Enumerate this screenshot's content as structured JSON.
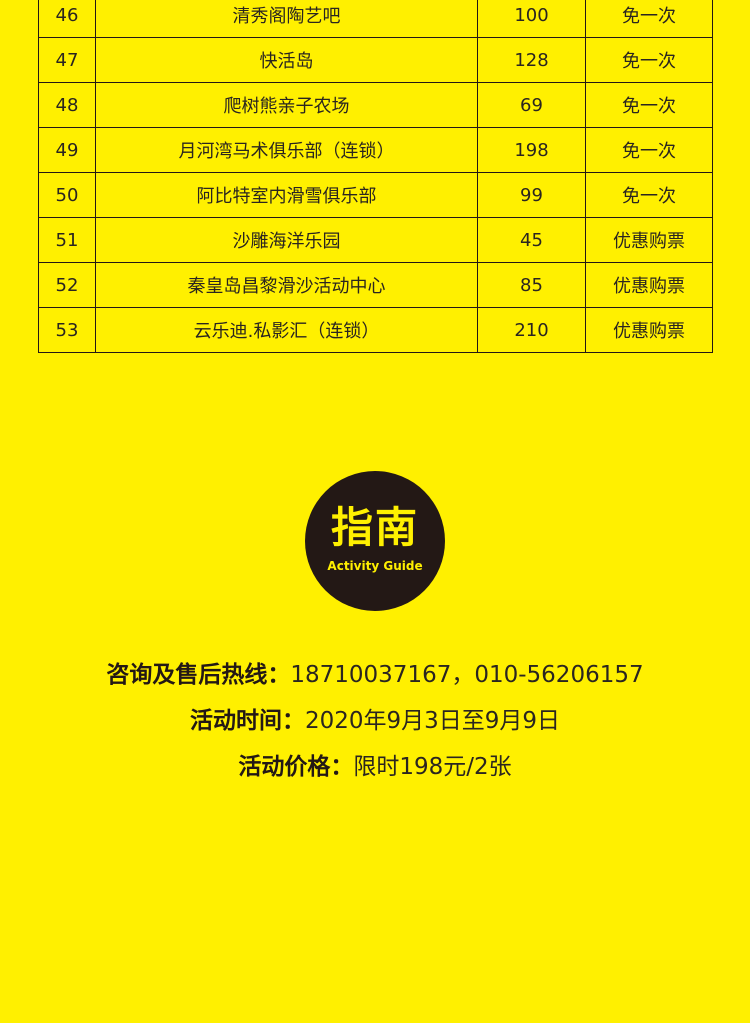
{
  "table": {
    "rows": [
      {
        "no": "46",
        "name": "清秀阁陶艺吧",
        "price": "100",
        "deal": "免一次"
      },
      {
        "no": "47",
        "name": "快活岛",
        "price": "128",
        "deal": "免一次"
      },
      {
        "no": "48",
        "name": "爬树熊亲子农场",
        "price": "69",
        "deal": "免一次"
      },
      {
        "no": "49",
        "name": "月河湾马术俱乐部（连锁）",
        "price": "198",
        "deal": "免一次"
      },
      {
        "no": "50",
        "name": "阿比特室内滑雪俱乐部",
        "price": "99",
        "deal": "免一次"
      },
      {
        "no": "51",
        "name": "沙雕海洋乐园",
        "price": "45",
        "deal": "优惠购票"
      },
      {
        "no": "52",
        "name": "秦皇岛昌黎滑沙活动中心",
        "price": "85",
        "deal": "优惠购票"
      },
      {
        "no": "53",
        "name": "云乐迪.私影汇（连锁）",
        "price": "210",
        "deal": "优惠购票"
      }
    ]
  },
  "guide": {
    "title": "指南",
    "subtitle": "Activity Guide"
  },
  "info": {
    "hotline_label": "咨询及售后热线：",
    "hotline_value": "18710037167，010-56206157",
    "time_label": "活动时间：",
    "time_value": "2020年9月3日至9月9日",
    "price_label": "活动价格：",
    "price_value": "限时198元/2张"
  },
  "colors": {
    "background": "#FFF000",
    "ink": "#231815"
  }
}
